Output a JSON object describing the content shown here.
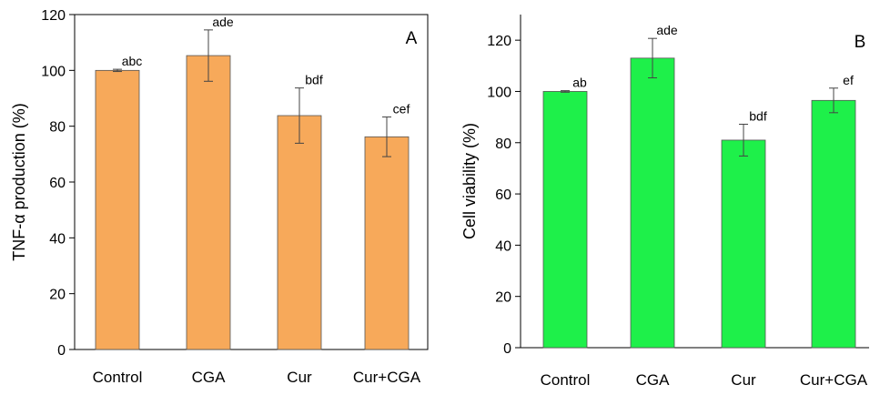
{
  "chart_data": [
    {
      "type": "bar",
      "panel_label": "A",
      "categories": [
        "Control",
        "CGA",
        "Cur",
        "Cur+CGA"
      ],
      "values": [
        100,
        105.3,
        83.8,
        76.2
      ],
      "errors": [
        0.4,
        9.2,
        9.9,
        7.1
      ],
      "bar_labels": [
        "abc",
        "ade",
        "bdf",
        "cef"
      ],
      "ylabel": "TNF-α production  (%)",
      "xlabel": "",
      "ylim": [
        0,
        120
      ],
      "yticks": [
        "0",
        "20",
        "40",
        "60",
        "80",
        "100",
        "120"
      ],
      "bar_color": "#f7a95a",
      "box": true
    },
    {
      "type": "bar",
      "panel_label": "B",
      "categories": [
        "Control",
        "CGA",
        "Cur",
        "Cur+CGA"
      ],
      "values": [
        100,
        113,
        81,
        96.5
      ],
      "errors": [
        0.3,
        7.7,
        6.2,
        4.8
      ],
      "bar_labels": [
        "ab",
        "ade",
        "bdf",
        "ef"
      ],
      "ylabel": "Cell viability  (%)",
      "xlabel": "",
      "ylim": [
        0,
        130
      ],
      "yticks": [
        "0",
        "20",
        "40",
        "60",
        "80",
        "100",
        "120"
      ],
      "bar_color": "#1ef04a",
      "box": false
    }
  ]
}
